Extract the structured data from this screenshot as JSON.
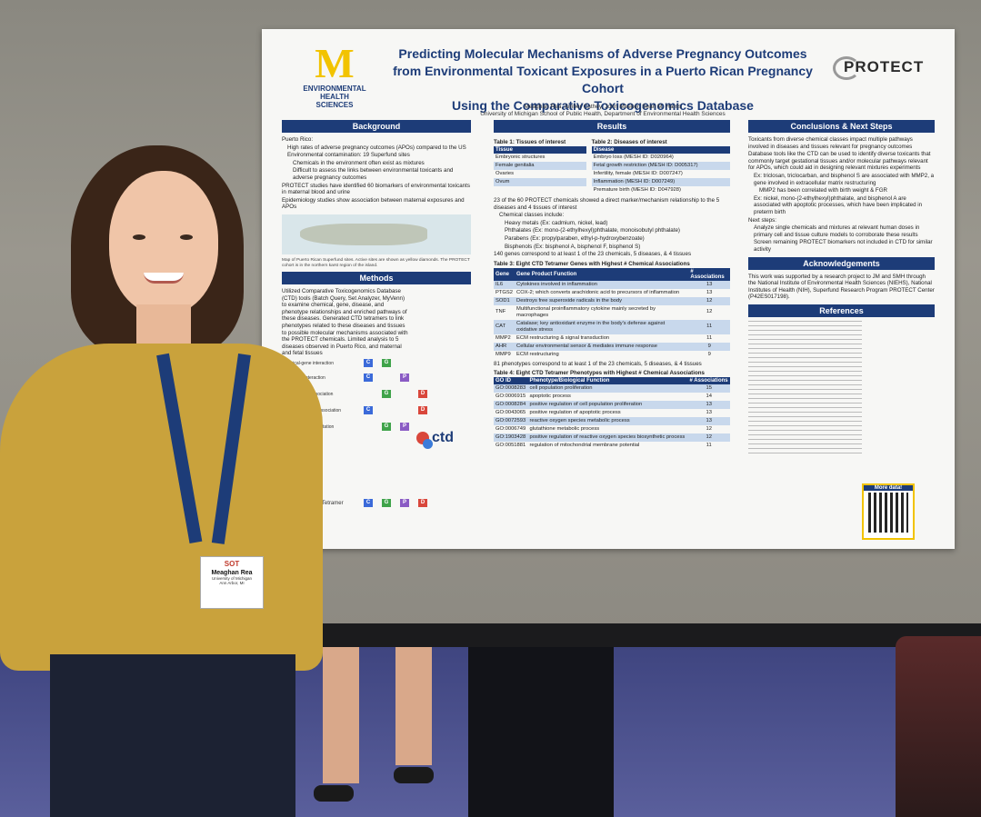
{
  "poster": {
    "logo": {
      "letter": "M",
      "line1": "ENVIRONMENTAL",
      "line2": "HEALTH SCIENCES"
    },
    "title_line1": "Predicting Molecular Mechanisms of Adverse Pregnancy Outcomes",
    "title_line2": "from Environmental Toxicant Exposures in a Puerto Rican Pregnancy Cohort",
    "title_line3": "Using the Comparative Toxicogenomics Database",
    "authors": "Meaghan Rea, Amber Cathey, John Meeker, Sean M. Harris",
    "affiliation": "University of Michigan School of Public Health, Department of Environmental Health Sciences",
    "protect_logo": "PROTECT",
    "background": {
      "header": "Background",
      "items": [
        "Puerto Rico:",
        "High rates of adverse pregnancy outcomes (APOs) compared to the US",
        "Environmental contamination: 19 Superfund sites",
        "Chemicals in the environment often exist as mixtures",
        "Difficult to assess the links between environmental toxicants and adverse pregnancy outcomes",
        "PROTECT studies have identified 60 biomarkers of environmental toxicants in maternal blood and urine",
        "Epidemiology studies show association between maternal exposures and APOs"
      ],
      "map_caption": "Map of Puerto Rican Superfund sites. Active sites are shown as yellow diamonds. The PROTECT cohort is in the northern karst region of the island."
    },
    "methods": {
      "header": "Methods",
      "text": "Utilized Comparative Toxicogenomics Database (CTD) tools (Batch Query, Set Analyzer, MyVenn) to examine chemical, gene, disease, and phenotype relationships and enriched pathways of these diseases. Generated CTD tetramers to link phenotypes related to these diseases and tissues to possible molecular mechanisms associated with the PROTECT chemicals. Limited analysis to 5 diseases observed in Puerto Rico, and maternal and fetal tissues",
      "ctd_logo": "ctd",
      "rows": [
        "chemical-gene interaction",
        "phenotype interaction",
        "gene-disease association",
        "chemical-disease association",
        "phenotype/GO annotation"
      ],
      "tetramer_label": "CTD Tetramer"
    },
    "results": {
      "header": "Results",
      "table1": {
        "title": "Table 1: Tissues of interest",
        "header": "Tissue",
        "rows": [
          "Embryonic structures",
          "Female genitalia",
          "Ovaries",
          "Ovum"
        ]
      },
      "table2": {
        "title": "Table 2: Diseases of interest",
        "header": "Disease",
        "rows": [
          "Embryo loss (MESH ID: D020964)",
          "Fetal growth restriction (MESH ID: D005317)",
          "Infertility, female (MESH ID: D007247)",
          "Inflammation (MESH ID: D007249)",
          "Premature birth (MESH ID: D047928)"
        ]
      },
      "summary": [
        "23 of the 60 PROTECT chemicals showed a direct marker/mechanism relationship to the 5 diseases and 4 tissues of interest",
        "Chemical classes include:",
        "Heavy metals (Ex: cadmium, nickel, lead)",
        "Phthalates (Ex: mono-(2-ethylhexyl)phthalate, monoisobutyl phthalate)",
        "Parabens (Ex: propylparaben, ethyl-p-hydroxybenzoate)",
        "Bisphenols (Ex: bisphenol A, bisphenol F, bisphenol S)",
        "140 genes correspond to at least 1 of the 23 chemicals, 5 diseases, & 4 tissues"
      ],
      "table3": {
        "title": "Table 3: Eight CTD Tetramer Genes with Highest # Chemical Associations",
        "headers": [
          "Gene",
          "Gene Product Function",
          "# Associations"
        ],
        "rows": [
          [
            "IL6",
            "Cytokines involved in inflammation",
            "13"
          ],
          [
            "PTGS2",
            "COX-2; which converts arachidonic acid to precursors of inflammation",
            "13"
          ],
          [
            "SOD1",
            "Destroys free superoxide radicals in the body",
            "12"
          ],
          [
            "TNF",
            "Multifunctional proinflammatory cytokine mainly secreted by macrophages",
            "12"
          ],
          [
            "CAT",
            "Catalase; key antioxidant enzyme in the body's defense against oxidative stress",
            "11"
          ],
          [
            "MMP2",
            "ECM restructuring & signal transduction",
            "11"
          ],
          [
            "AHR",
            "Cellular environmental sensor & mediates immune response",
            "9"
          ],
          [
            "MMP9",
            "ECM restructuring",
            "9"
          ]
        ]
      },
      "phenotype_note": "81 phenotypes correspond to at least 1 of the 23 chemicals, 5 diseases, & 4 tissues",
      "table4": {
        "title": "Table 4: Eight CTD Tetramer Phenotypes with Highest # Chemical Associations",
        "headers": [
          "GO ID",
          "Phenotype/Biological Function",
          "# Associations"
        ],
        "rows": [
          [
            "GO:0008283",
            "cell population proliferation",
            "15"
          ],
          [
            "GO:0006915",
            "apoptotic process",
            "14"
          ],
          [
            "GO:0008284",
            "positive regulation of cell population proliferation",
            "13"
          ],
          [
            "GO:0043065",
            "positive regulation of apoptotic process",
            "13"
          ],
          [
            "GO:0072593",
            "reactive oxygen species metabolic process",
            "13"
          ],
          [
            "GO:0006749",
            "glutathione metabolic process",
            "12"
          ],
          [
            "GO:1903428",
            "positive regulation of reactive oxygen species biosynthetic process",
            "12"
          ],
          [
            "GO:0051881",
            "regulation of mitochondrial membrane potential",
            "11"
          ]
        ]
      }
    },
    "conclusions": {
      "header": "Conclusions & Next Steps",
      "items": [
        "Toxicants from diverse chemical classes impact multiple pathways involved in diseases and tissues relevant for pregnancy outcomes",
        "Database tools like the CTD can be used to identify diverse toxicants that commonly target gestational tissues and/or molecular pathways relevant for APOs, which could aid in designing relevant mixtures experiments",
        "Ex: triclosan, triclocarban, and bisphenol S are associated with MMP2, a gene involved in extracellular matrix restructuring",
        "MMP2 has been correlated with birth weight & FGR",
        "Ex: nickel, mono-(2-ethylhexyl)phthalate, and bisphenol A are associated with apoptotic processes, which have been implicated in preterm birth",
        "Next steps:",
        "Analyze single chemicals and mixtures at relevant human doses in primary cell and tissue culture models to corroborate these results",
        "Screen remaining PROTECT biomarkers not included in CTD for similar activity"
      ]
    },
    "acknowledgements": {
      "header": "Acknowledgements",
      "text": "This work was supported by a research project to JM and SMH through the National Institute of Environmental Health Sciences (NIEHS), National Institutes of Health (NIH), Superfund Research Program PROTECT Center (P42ES017198)."
    },
    "references": {
      "header": "References"
    },
    "qr_label": "More data!"
  },
  "badge": {
    "org": "SOT",
    "name": "Meaghan Rea",
    "affil": "University of Michigan",
    "city": "Ann Arbor, MI"
  }
}
